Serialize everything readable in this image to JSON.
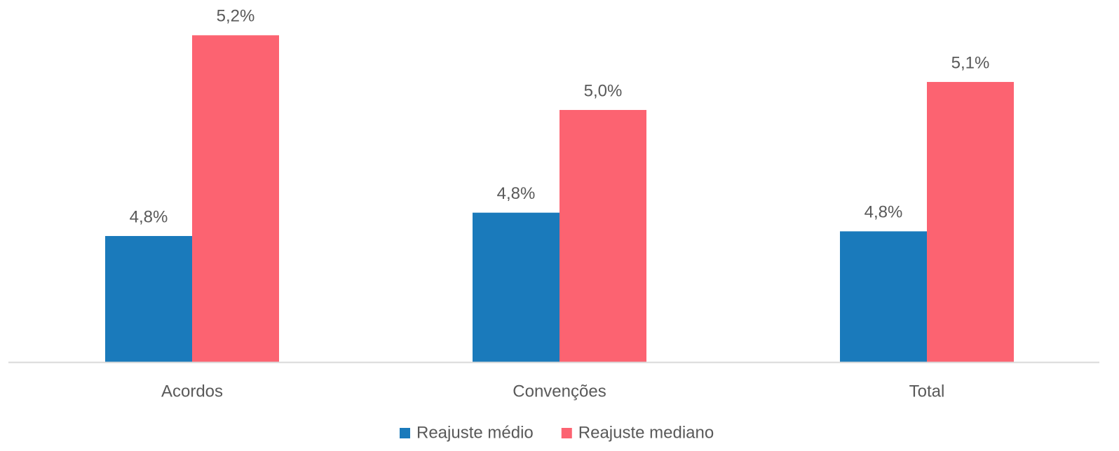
{
  "chart_data": {
    "type": "bar",
    "categories": [
      "Acordos",
      "Convenções",
      "Total"
    ],
    "series": [
      {
        "name": "Reajuste médio",
        "color": "#1a7abb",
        "values": [
          4.77,
          4.82,
          4.78
        ],
        "value_labels": [
          "4,8%",
          "4,8%",
          "4,8%"
        ]
      },
      {
        "name": "Reajuste mediano",
        "color": "#fc6371",
        "values": [
          5.2,
          5.04,
          5.1
        ],
        "value_labels": [
          "5,2%",
          "5,0%",
          "5,1%"
        ]
      }
    ],
    "ylim": [
      4.5,
      5.3
    ],
    "legend": "bottom"
  }
}
